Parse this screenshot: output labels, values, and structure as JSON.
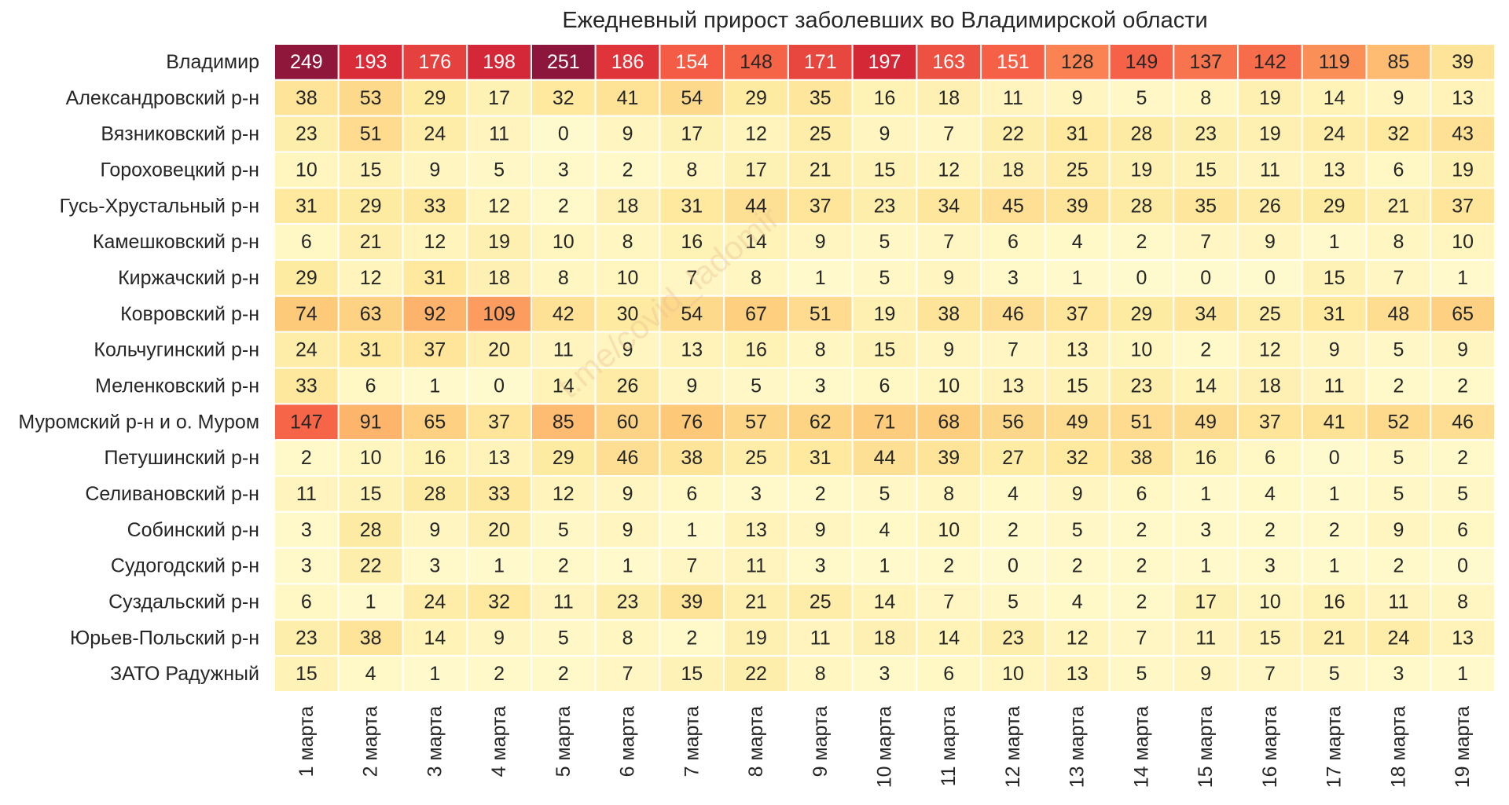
{
  "watermark": "t.me/covid_ladomir",
  "chart_data": {
    "type": "heatmap",
    "title": "Ежедневный прирост заболевших во Владимирской области",
    "xlabel": "",
    "ylabel": "",
    "columns": [
      "1 марта",
      "2 марта",
      "3 марта",
      "4 марта",
      "5 марта",
      "6 марта",
      "7 марта",
      "8 марта",
      "9 марта",
      "10 марта",
      "11 марта",
      "12 марта",
      "13 марта",
      "14 марта",
      "15 марта",
      "16 марта",
      "17 марта",
      "18 марта",
      "19 марта"
    ],
    "rows": [
      "Владимир",
      "Александровский р-н",
      "Вязниковский р-н",
      "Гороховецкий р-н",
      "Гусь-Хрустальный р-н",
      "Камешковский р-н",
      "Киржачский р-н",
      "Ковровский р-н",
      "Кольчугинский р-н",
      "Меленковский р-н",
      "Муромский р-н и о. Муром",
      "Петушинский р-н",
      "Селивановский р-н",
      "Собинский р-н",
      "Судогодский р-н",
      "Суздальский р-н",
      "Юрьев-Польский р-н",
      "ЗАТО Радужный"
    ],
    "values": [
      [
        249,
        193,
        176,
        198,
        251,
        186,
        154,
        148,
        171,
        197,
        163,
        151,
        128,
        149,
        137,
        142,
        119,
        85,
        39
      ],
      [
        38,
        53,
        29,
        17,
        32,
        41,
        54,
        29,
        35,
        16,
        18,
        11,
        9,
        5,
        8,
        19,
        14,
        9,
        13
      ],
      [
        23,
        51,
        24,
        11,
        0,
        9,
        17,
        12,
        25,
        9,
        7,
        22,
        31,
        28,
        23,
        19,
        24,
        32,
        43
      ],
      [
        10,
        15,
        9,
        5,
        3,
        2,
        8,
        17,
        21,
        15,
        12,
        18,
        25,
        19,
        15,
        11,
        13,
        6,
        19
      ],
      [
        31,
        29,
        33,
        12,
        2,
        18,
        31,
        44,
        37,
        23,
        34,
        45,
        39,
        28,
        35,
        26,
        29,
        21,
        37
      ],
      [
        6,
        21,
        12,
        19,
        10,
        8,
        16,
        14,
        9,
        5,
        7,
        6,
        4,
        2,
        7,
        9,
        1,
        8,
        10
      ],
      [
        29,
        12,
        31,
        18,
        8,
        10,
        7,
        8,
        1,
        5,
        9,
        3,
        1,
        0,
        0,
        0,
        15,
        7,
        1
      ],
      [
        74,
        63,
        92,
        109,
        42,
        30,
        54,
        67,
        51,
        19,
        38,
        46,
        37,
        29,
        34,
        25,
        31,
        48,
        65
      ],
      [
        24,
        31,
        37,
        20,
        11,
        9,
        13,
        16,
        8,
        15,
        9,
        7,
        13,
        10,
        2,
        12,
        9,
        5,
        9
      ],
      [
        33,
        6,
        1,
        0,
        14,
        26,
        9,
        5,
        3,
        6,
        10,
        13,
        15,
        23,
        14,
        18,
        11,
        2,
        2
      ],
      [
        147,
        91,
        65,
        37,
        85,
        60,
        76,
        57,
        62,
        71,
        68,
        56,
        49,
        51,
        49,
        37,
        41,
        52,
        46
      ],
      [
        2,
        10,
        16,
        13,
        29,
        46,
        38,
        25,
        31,
        44,
        39,
        27,
        32,
        38,
        16,
        6,
        0,
        5,
        2
      ],
      [
        11,
        15,
        28,
        33,
        12,
        9,
        6,
        3,
        2,
        5,
        8,
        4,
        9,
        6,
        1,
        4,
        1,
        5,
        5
      ],
      [
        3,
        28,
        9,
        20,
        5,
        9,
        1,
        13,
        9,
        4,
        10,
        2,
        5,
        2,
        3,
        2,
        2,
        9,
        6
      ],
      [
        3,
        22,
        3,
        1,
        2,
        1,
        7,
        11,
        3,
        1,
        2,
        0,
        2,
        2,
        1,
        3,
        1,
        2,
        0
      ],
      [
        6,
        1,
        24,
        32,
        11,
        23,
        39,
        21,
        25,
        14,
        7,
        5,
        4,
        2,
        17,
        10,
        16,
        11,
        8
      ],
      [
        23,
        38,
        14,
        9,
        5,
        8,
        2,
        19,
        11,
        18,
        14,
        23,
        12,
        7,
        11,
        15,
        21,
        24,
        13
      ],
      [
        15,
        4,
        1,
        2,
        2,
        7,
        15,
        22,
        8,
        3,
        6,
        10,
        13,
        5,
        9,
        7,
        5,
        3,
        1
      ]
    ],
    "color_scale": "YlOrRd-like (yellow → red → dark red)",
    "vmin": 0,
    "vmax": 251
  }
}
